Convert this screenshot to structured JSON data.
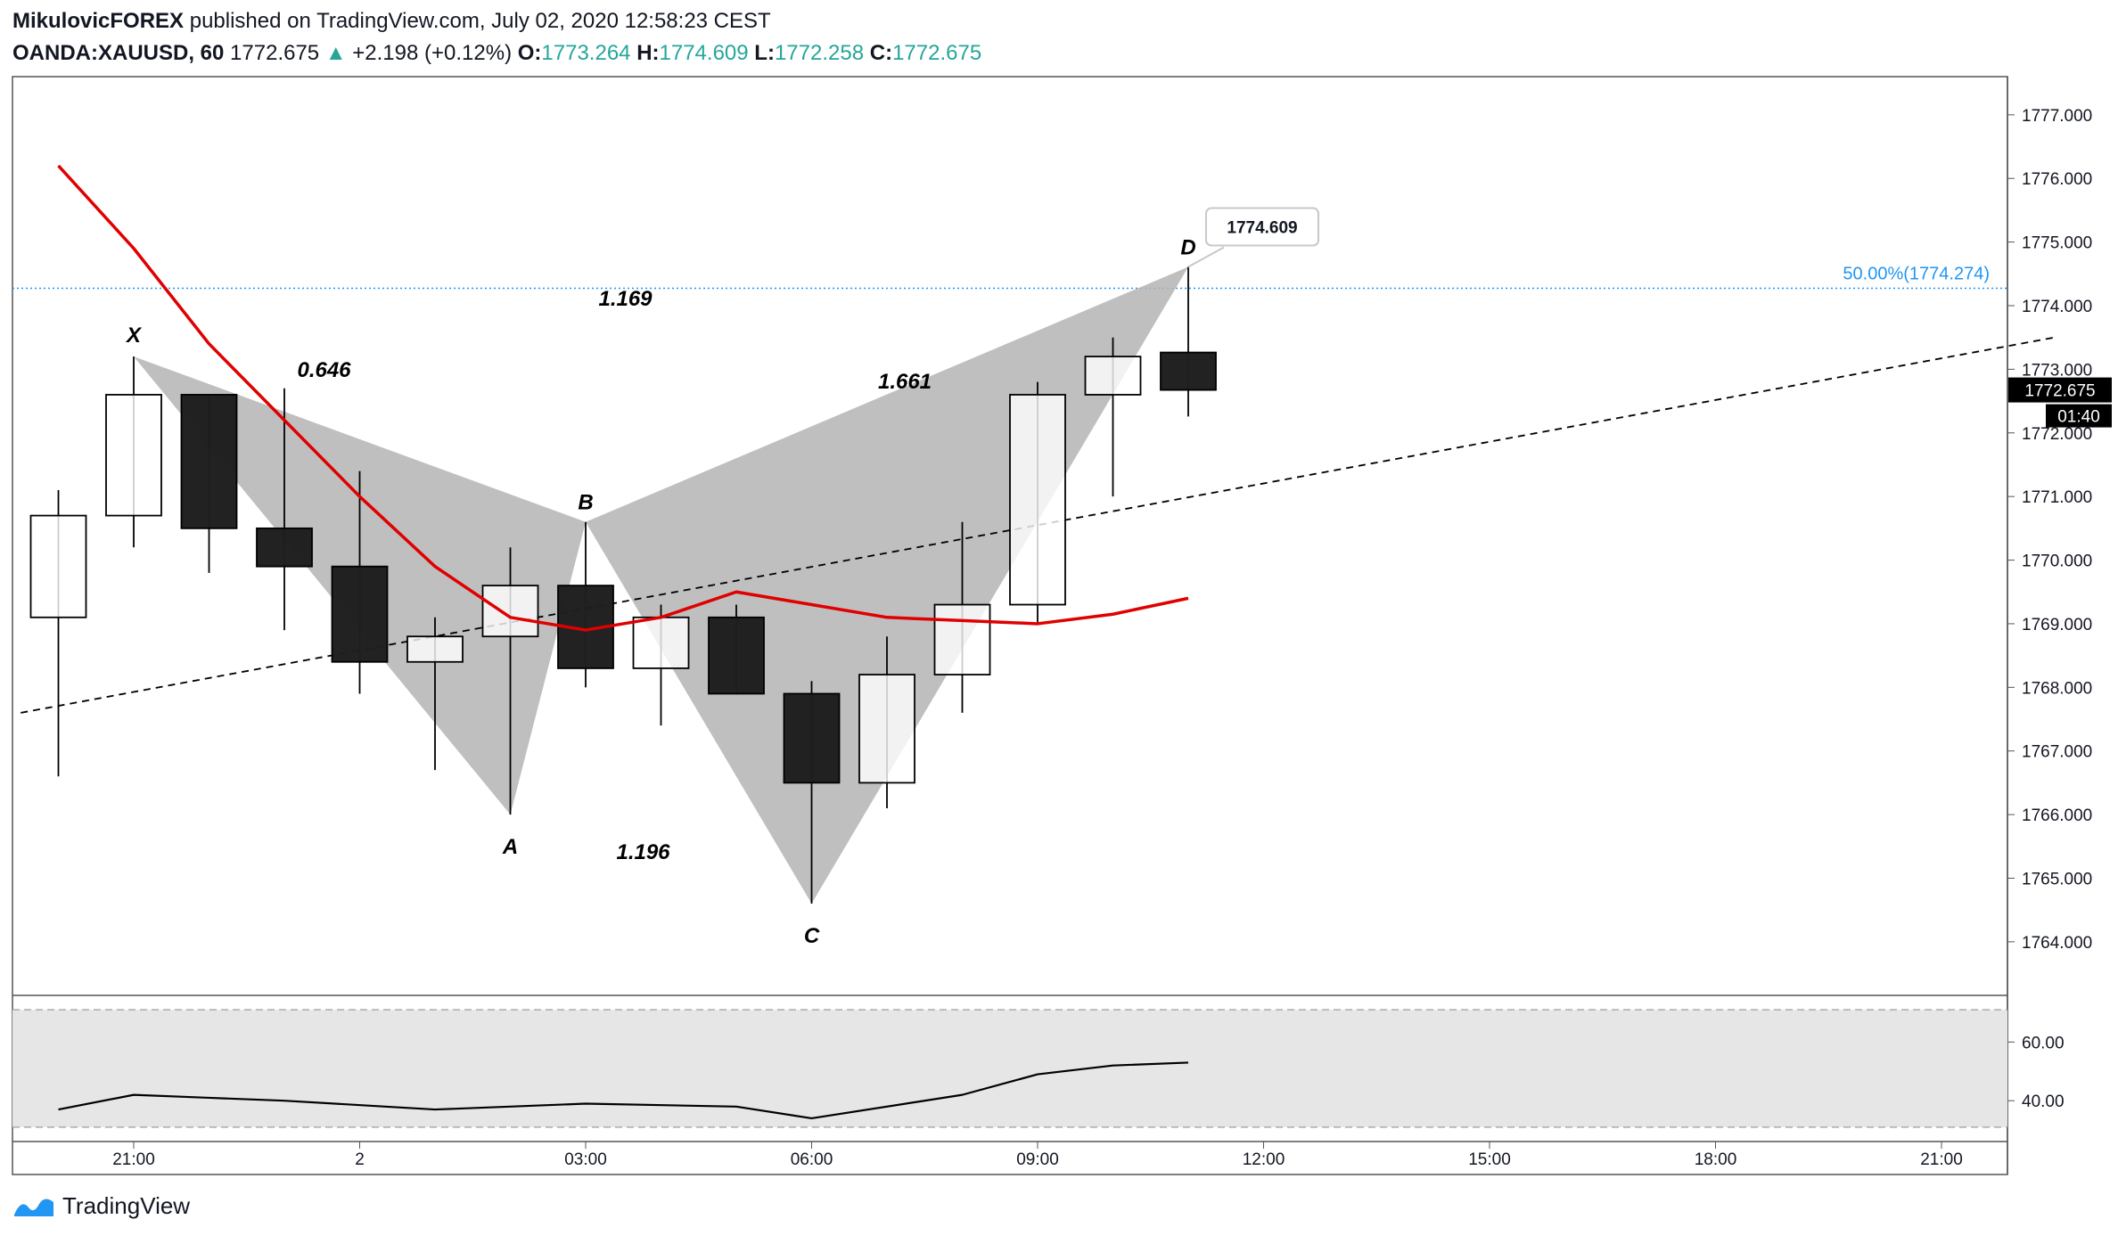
{
  "header": {
    "publisher": "MikulovicFOREX",
    "published_text": "published on TradingView.com, July 02, 2020 12:58:23 CEST",
    "symbol": "OANDA:XAUUSD, 60",
    "last": "1772.675",
    "change": "+2.198 (+0.12%)",
    "o_label": "O:",
    "o_value": "1773.264",
    "h_label": "H:",
    "h_value": "1774.609",
    "l_label": "L:",
    "l_value": "1772.258",
    "c_label": "C:",
    "c_value": "1772.675",
    "up_arrow": "▲"
  },
  "footer": {
    "brand": "TradingView",
    "logo_icon": "tradingview-logo-icon"
  },
  "colors": {
    "bull_body": "#ffffff",
    "bear_body": "#1e1e1e",
    "ma": "#e00000",
    "pattern_fill": "#b4b4b4",
    "fib_line": "#2196f3",
    "trend_line": "#000000",
    "osc_band": "#e6e6e6"
  },
  "chart_data": [
    {
      "type": "candlestick",
      "timeframe": "60",
      "x_ticks": [
        "21:00",
        "2",
        "03:00",
        "06:00",
        "09:00",
        "12:00",
        "15:00",
        "18:00",
        "21:00"
      ],
      "y_ticks": [
        "1764.000",
        "1765.000",
        "1766.000",
        "1767.000",
        "1768.000",
        "1769.000",
        "1770.000",
        "1771.000",
        "1772.000",
        "1773.000",
        "1774.000",
        "1775.000",
        "1776.000",
        "1777.000"
      ],
      "ylim": [
        1763.2,
        1777.6
      ],
      "candles": [
        {
          "x": -1,
          "open": 1769.1,
          "high": 1771.1,
          "low": 1766.6,
          "close": 1770.7
        },
        {
          "x": 0,
          "open": 1770.7,
          "high": 1773.2,
          "low": 1770.2,
          "close": 1772.6
        },
        {
          "x": 1,
          "open": 1772.6,
          "high": 1772.6,
          "low": 1769.8,
          "close": 1770.5
        },
        {
          "x": 2,
          "open": 1770.5,
          "high": 1772.7,
          "low": 1768.9,
          "close": 1769.9
        },
        {
          "x": 3,
          "open": 1769.9,
          "high": 1771.4,
          "low": 1767.9,
          "close": 1768.4
        },
        {
          "x": 4,
          "open": 1768.4,
          "high": 1769.1,
          "low": 1766.7,
          "close": 1768.8
        },
        {
          "x": 5,
          "open": 1768.8,
          "high": 1770.2,
          "low": 1766.0,
          "close": 1769.6
        },
        {
          "x": 6,
          "open": 1769.6,
          "high": 1770.6,
          "low": 1768.0,
          "close": 1768.3
        },
        {
          "x": 7,
          "open": 1768.3,
          "high": 1769.3,
          "low": 1767.4,
          "close": 1769.1
        },
        {
          "x": 8,
          "open": 1769.1,
          "high": 1769.3,
          "low": 1767.9,
          "close": 1767.9
        },
        {
          "x": 9,
          "open": 1767.9,
          "high": 1768.1,
          "low": 1764.6,
          "close": 1766.5
        },
        {
          "x": 10,
          "open": 1766.5,
          "high": 1768.8,
          "low": 1766.1,
          "close": 1768.2
        },
        {
          "x": 11,
          "open": 1768.2,
          "high": 1770.6,
          "low": 1767.6,
          "close": 1769.3
        },
        {
          "x": 12,
          "open": 1769.3,
          "high": 1772.8,
          "low": 1769.0,
          "close": 1772.6
        },
        {
          "x": 13,
          "open": 1772.6,
          "high": 1773.5,
          "low": 1771.0,
          "close": 1773.2
        },
        {
          "x": 14,
          "open": 1773.264,
          "high": 1774.609,
          "low": 1772.258,
          "close": 1772.675
        }
      ],
      "moving_average": [
        {
          "x": -1,
          "y": 1776.2
        },
        {
          "x": 0,
          "y": 1774.9
        },
        {
          "x": 1,
          "y": 1773.4
        },
        {
          "x": 2,
          "y": 1772.2
        },
        {
          "x": 3,
          "y": 1771.0
        },
        {
          "x": 4,
          "y": 1769.9
        },
        {
          "x": 5,
          "y": 1769.1
        },
        {
          "x": 6,
          "y": 1768.9
        },
        {
          "x": 7,
          "y": 1769.1
        },
        {
          "x": 8,
          "y": 1769.5
        },
        {
          "x": 9,
          "y": 1769.3
        },
        {
          "x": 10,
          "y": 1769.1
        },
        {
          "x": 11,
          "y": 1769.05
        },
        {
          "x": 12,
          "y": 1769.0
        },
        {
          "x": 13,
          "y": 1769.15
        },
        {
          "x": 14,
          "y": 1769.4
        }
      ],
      "pattern": {
        "points": [
          {
            "label": "X",
            "x": 0,
            "y": 1773.2
          },
          {
            "label": "A",
            "x": 5,
            "y": 1766.0
          },
          {
            "label": "B",
            "x": 6,
            "y": 1770.6
          },
          {
            "label": "C",
            "x": 9,
            "y": 1764.6
          },
          {
            "label": "D",
            "x": 14,
            "y": 1774.609
          }
        ],
        "ratios": [
          {
            "text": "0.646"
          },
          {
            "text": "1.169"
          },
          {
            "text": "1.196"
          },
          {
            "text": "1.661"
          }
        ]
      },
      "fib_level": {
        "value": 1774.274,
        "label": "50.00%(1774.274)"
      },
      "trend_line": [
        {
          "x": -1.5,
          "y": 1767.6
        },
        {
          "x": 25.5,
          "y": 1773.5
        }
      ],
      "high_callout": "1774.609",
      "last_price_label": "1772.675",
      "countdown_label": "01:40"
    },
    {
      "type": "line",
      "name": "oscillator",
      "y_ticks": [
        "40.00",
        "60.00"
      ],
      "ylim": [
        27,
        75
      ],
      "band": [
        31,
        71
      ],
      "values": [
        {
          "x": -1,
          "y": 37
        },
        {
          "x": 0,
          "y": 42
        },
        {
          "x": 1,
          "y": 41
        },
        {
          "x": 2,
          "y": 40
        },
        {
          "x": 4,
          "y": 37
        },
        {
          "x": 6,
          "y": 39
        },
        {
          "x": 8,
          "y": 38
        },
        {
          "x": 9,
          "y": 34
        },
        {
          "x": 11,
          "y": 42
        },
        {
          "x": 12,
          "y": 49
        },
        {
          "x": 13,
          "y": 52
        },
        {
          "x": 14,
          "y": 53
        }
      ]
    }
  ]
}
